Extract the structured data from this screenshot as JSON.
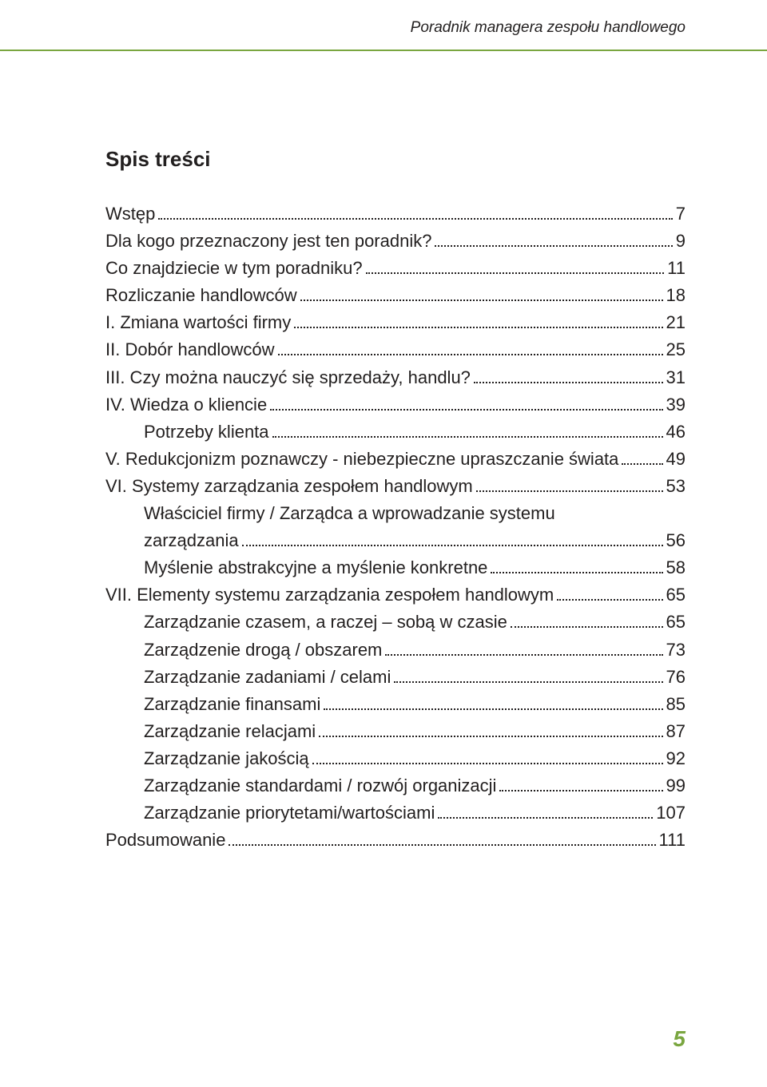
{
  "header": {
    "title": "Poradnik managera zespołu handlowego",
    "rule_color": "#7aa640"
  },
  "toc": {
    "title": "Spis treści",
    "entries": [
      {
        "label": "Wstęp",
        "page": "7",
        "indent": 0
      },
      {
        "label": "Dla kogo przeznaczony jest ten poradnik?",
        "page": "9",
        "indent": 0
      },
      {
        "label": "Co znajdziecie w tym poradniku?",
        "page": "11",
        "indent": 0
      },
      {
        "label": "Rozliczanie handlowców",
        "page": "18",
        "indent": 0
      },
      {
        "label": "I. Zmiana wartości firmy",
        "page": "21",
        "indent": 0
      },
      {
        "label": "II. Dobór handlowców",
        "page": "25",
        "indent": 0
      },
      {
        "label": "III. Czy można nauczyć się sprzedaży, handlu?",
        "page": "31",
        "indent": 0
      },
      {
        "label": "IV. Wiedza o kliencie",
        "page": "39",
        "indent": 0
      },
      {
        "label": "Potrzeby klienta",
        "page": "46",
        "indent": 1
      },
      {
        "label": "V. Redukcjonizm poznawczy - niebezpieczne upraszczanie świata",
        "page": "49",
        "indent": 0
      },
      {
        "label": "VI. Systemy zarządzania zespołem handlowym",
        "page": "53",
        "indent": 0
      },
      {
        "label_line1": "Właściciel firmy / Zarządca a wprowadzanie systemu",
        "label_line2": "zarządzania",
        "page": "56",
        "indent": 1,
        "wrap": true
      },
      {
        "label": "Myślenie abstrakcyjne a myślenie konkretne",
        "page": "58",
        "indent": 1
      },
      {
        "label": "VII. Elementy systemu zarządzania zespołem handlowym",
        "page": "65",
        "indent": 0
      },
      {
        "label": "Zarządzanie czasem, a raczej – sobą w czasie",
        "page": "65",
        "indent": 1
      },
      {
        "label": "Zarządzenie drogą / obszarem",
        "page": "73",
        "indent": 1
      },
      {
        "label": "Zarządzanie zadaniami / celami",
        "page": "76",
        "indent": 1
      },
      {
        "label": "Zarządzanie finansami",
        "page": "85",
        "indent": 1
      },
      {
        "label": "Zarządzanie relacjami",
        "page": "87",
        "indent": 1
      },
      {
        "label": "Zarządzanie jakością",
        "page": "92",
        "indent": 1
      },
      {
        "label": "Zarządzanie standardami / rozwój organizacji",
        "page": "99",
        "indent": 1
      },
      {
        "label": "Zarządzanie priorytetami/wartościami",
        "page": "107",
        "indent": 1
      },
      {
        "label": "Podsumowanie",
        "page": "111",
        "indent": 0
      }
    ]
  },
  "footer": {
    "page_number": "5",
    "page_number_color": "#7aa640"
  },
  "typography": {
    "body_fontsize": 22,
    "title_fontsize": 26,
    "header_fontsize": 19,
    "footer_fontsize": 28,
    "text_color": "#221f1f",
    "background_color": "#ffffff"
  }
}
